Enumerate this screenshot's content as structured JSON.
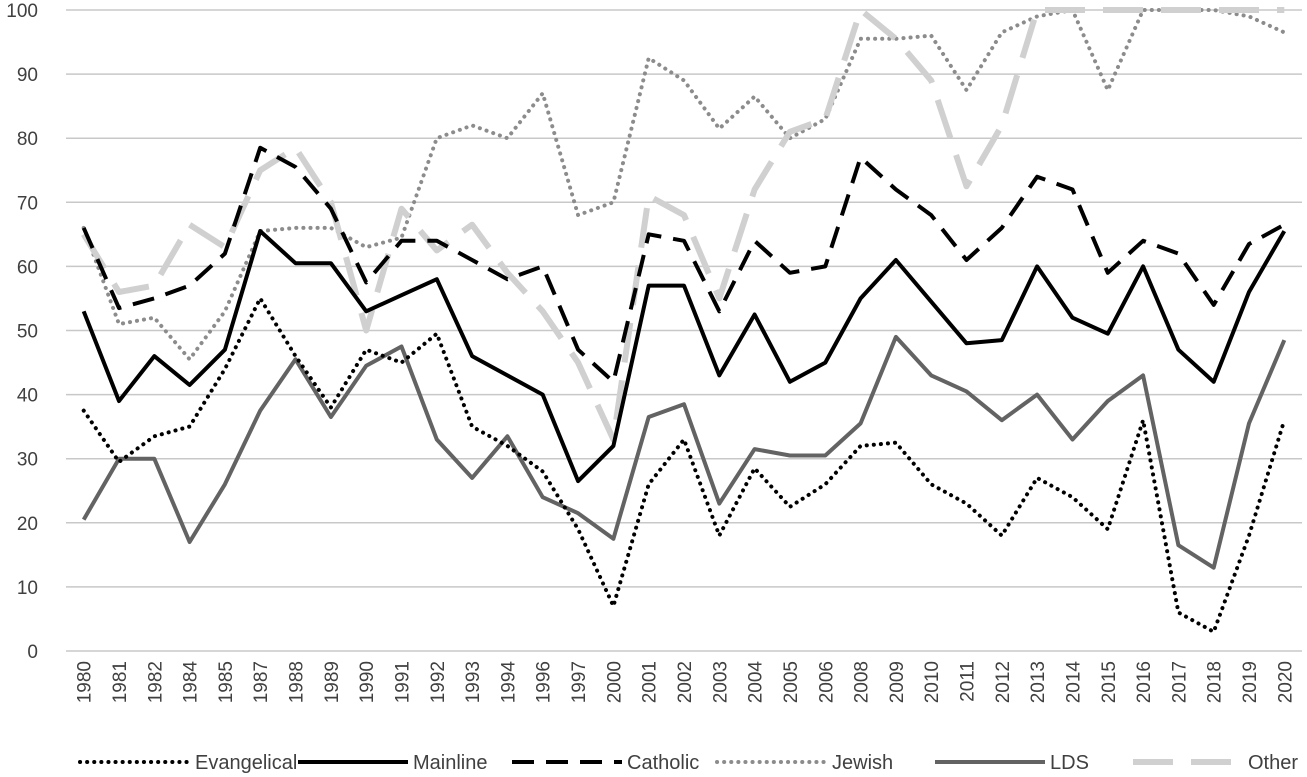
{
  "chart_data": {
    "type": "line",
    "title": "",
    "xlabel": "",
    "ylabel": "",
    "ylim": [
      0,
      100
    ],
    "yticks": [
      0,
      10,
      20,
      30,
      40,
      50,
      60,
      70,
      80,
      90,
      100
    ],
    "grid": "horizontal",
    "legend_position": "bottom",
    "categories": [
      "1980",
      "1981",
      "1982",
      "1984",
      "1985",
      "1987",
      "1988",
      "1989",
      "1990",
      "1991",
      "1992",
      "1993",
      "1994",
      "1996",
      "1997",
      "2000",
      "2001",
      "2002",
      "2003",
      "2004",
      "2005",
      "2006",
      "2008",
      "2009",
      "2010",
      "2011",
      "2012",
      "2013",
      "2014",
      "2015",
      "2016",
      "2017",
      "2018",
      "2019",
      "2020"
    ],
    "series": [
      {
        "name": "Evangelical",
        "color": "#000000",
        "style": "dotted",
        "values": [
          37.5,
          29.5,
          33.5,
          35,
          44,
          55,
          46,
          38,
          47,
          45,
          49.5,
          35,
          32,
          28,
          19,
          7,
          26,
          33,
          18,
          28.5,
          22.5,
          26,
          32,
          32.5,
          26,
          23,
          18,
          27,
          24,
          19,
          36,
          6,
          3,
          18,
          36
        ]
      },
      {
        "name": "Mainline",
        "color": "#000000",
        "style": "solid",
        "values": [
          53,
          39,
          46,
          41.5,
          47,
          65.5,
          60.5,
          60.5,
          53,
          55.5,
          58,
          46,
          43,
          40,
          26.5,
          32,
          57,
          57,
          43,
          52.5,
          42,
          45,
          55,
          61,
          54.5,
          48,
          48.5,
          60,
          52,
          49.5,
          60,
          47,
          42,
          56,
          65.5
        ]
      },
      {
        "name": "Catholic",
        "color": "#000000",
        "style": "dashed",
        "values": [
          66,
          53.5,
          55,
          57,
          62,
          78.5,
          75.5,
          69,
          57.5,
          64,
          64,
          61,
          58,
          60,
          47,
          42,
          65,
          64,
          53,
          64,
          59,
          60,
          77,
          72,
          68,
          61,
          66,
          74,
          72,
          59,
          64,
          62,
          54,
          63.5,
          66.5
        ]
      },
      {
        "name": "Jewish",
        "color": "#8c8c8c",
        "style": "dotted",
        "values": [
          66,
          51,
          52,
          45.5,
          53,
          65.5,
          66,
          66,
          63,
          64.5,
          80,
          82,
          80,
          87,
          68,
          70,
          92.5,
          89,
          81.5,
          86.5,
          80,
          83,
          95.5,
          95.5,
          96,
          87.5,
          96.5,
          99,
          100,
          87.5,
          100,
          100,
          100,
          99,
          96.5
        ]
      },
      {
        "name": "LDS",
        "color": "#636363",
        "style": "solid",
        "values": [
          20.5,
          30,
          30,
          17,
          26,
          37.5,
          45.5,
          36.5,
          44.5,
          47.5,
          33,
          27,
          33.5,
          24,
          21.5,
          17.5,
          36.5,
          38.5,
          23,
          31.5,
          30.5,
          30.5,
          35.5,
          49,
          43,
          40.5,
          36,
          40,
          33,
          39,
          43,
          16.5,
          13,
          35.5,
          48.5
        ]
      },
      {
        "name": "Other",
        "color": "#d0d0d0",
        "style": "longdash",
        "values": [
          65,
          56,
          57,
          66.5,
          63,
          75,
          78.5,
          70,
          50,
          69,
          62.5,
          66.5,
          59,
          53,
          45,
          33,
          71,
          68,
          55,
          72,
          81,
          83,
          100,
          95.5,
          89,
          72.5,
          82,
          100,
          100,
          100,
          100,
          100,
          100,
          100,
          100
        ]
      }
    ]
  }
}
